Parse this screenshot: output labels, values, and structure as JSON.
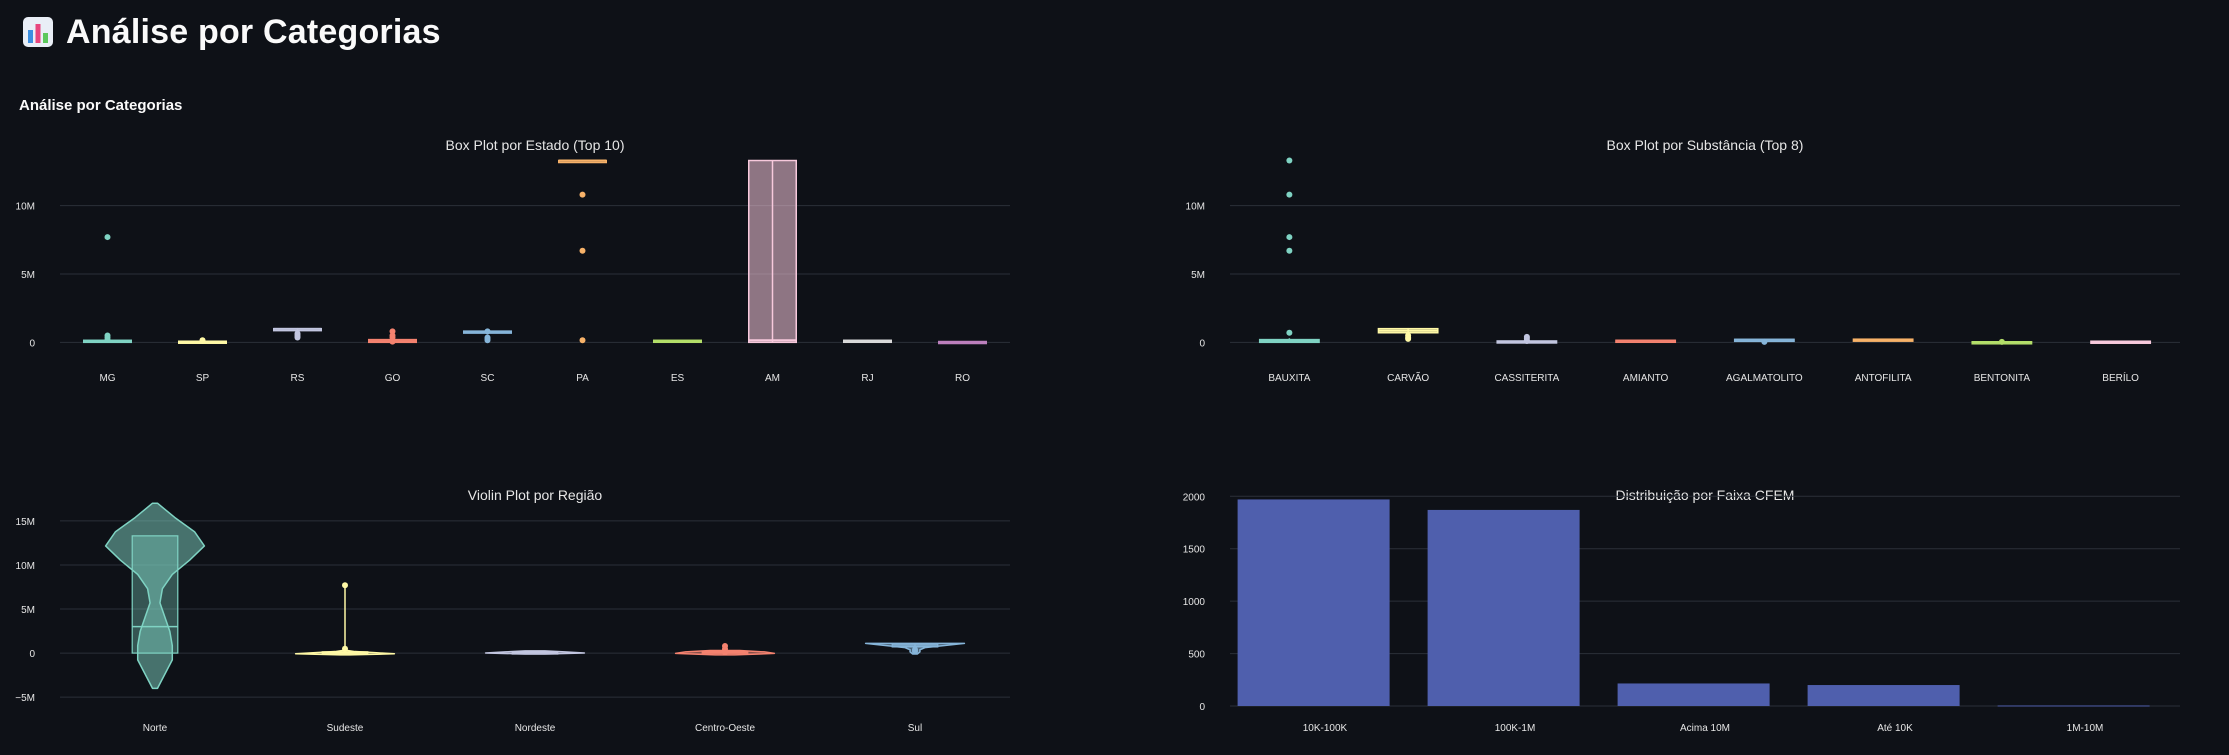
{
  "page": {
    "title": "Análise por Categorias",
    "section_heading": "Análise por Categorias",
    "header_icon": "bar-chart-icon"
  },
  "colors": {
    "background": "#0e1117",
    "grid": "#2b3039",
    "text": "#e6e6e6",
    "palette": [
      "#7fd3c3",
      "#fff9a6",
      "#c2c6e0",
      "#f4826f",
      "#86b5d9",
      "#f7b269",
      "#b3de69",
      "#f7c9dc",
      "#d9d9d9",
      "#bc80bd"
    ],
    "bar": "#4f5fad"
  },
  "chart_data": [
    {
      "id": "box-estado",
      "type": "box",
      "title": "Box Plot por Estado (Top 10)",
      "categories": [
        "MG",
        "SP",
        "RS",
        "GO",
        "SC",
        "PA",
        "ES",
        "AM",
        "RJ",
        "RO"
      ],
      "y_ticks": [
        0,
        5000000,
        10000000
      ],
      "y_tick_labels": [
        "0",
        "5M",
        "10M"
      ],
      "ylim": [
        -1000000,
        14800000
      ],
      "grid": true,
      "boxes": [
        {
          "q1": 0,
          "q3": 150000,
          "median": 60000,
          "whisker_low": 0,
          "whisker_high": 300000,
          "outliers": [
            7700000,
            500000,
            350000,
            200000
          ]
        },
        {
          "q1": 0,
          "q3": 80000,
          "median": 30000,
          "whisker_low": 0,
          "whisker_high": 150000,
          "outliers": [
            150000,
            100000
          ]
        },
        {
          "q1": 950000,
          "q3": 1000000,
          "median": 980000,
          "whisker_low": 900000,
          "whisker_high": 1050000,
          "outliers": [
            650000,
            550000,
            450000,
            350000
          ]
        },
        {
          "q1": 0,
          "q3": 200000,
          "median": 90000,
          "whisker_low": 0,
          "whisker_high": 300000,
          "outliers": [
            800000,
            500000,
            350000,
            150000,
            50000
          ]
        },
        {
          "q1": 750000,
          "q3": 820000,
          "median": 780000,
          "whisker_low": 700000,
          "whisker_high": 870000,
          "outliers": [
            800000,
            350000,
            250000,
            150000
          ]
        },
        {
          "q1": 13300000,
          "q3": 13300000,
          "median": 13300000,
          "whisker_low": 13300000,
          "whisker_high": 13300000,
          "outliers": [
            10800000,
            6700000,
            150000
          ]
        },
        {
          "q1": 30000,
          "q3": 150000,
          "median": 80000,
          "whisker_low": 0,
          "whisker_high": 150000,
          "outliers": []
        },
        {
          "q1": 0,
          "q3": 13300000,
          "median": 150000,
          "whisker_low": 0,
          "whisker_high": 13300000,
          "outliers": []
        },
        {
          "q1": 100000,
          "q3": 150000,
          "median": 120000,
          "whisker_low": 80000,
          "whisker_high": 180000,
          "outliers": []
        },
        {
          "q1": 0,
          "q3": 60000,
          "median": 20000,
          "whisker_low": 0,
          "whisker_high": 80000,
          "outliers": []
        }
      ]
    },
    {
      "id": "box-substancia",
      "type": "box",
      "title": "Box Plot por Substância (Top 8)",
      "categories": [
        "BAUXITA",
        "CARVÃO",
        "CASSITERITA",
        "AMIANTO",
        "AGALMATOLITO",
        "ANTOFILITA",
        "BENTONITA",
        "BERÍLO"
      ],
      "y_ticks": [
        0,
        5000000,
        10000000
      ],
      "y_tick_labels": [
        "0",
        "5M",
        "10M"
      ],
      "ylim": [
        -1000000,
        14800000
      ],
      "grid": true,
      "boxes": [
        {
          "q1": 0,
          "q3": 200000,
          "median": 100000,
          "whisker_low": 0,
          "whisker_high": 300000,
          "outliers": [
            13300000,
            10800000,
            7700000,
            6700000,
            700000
          ]
        },
        {
          "q1": 700000,
          "q3": 1000000,
          "median": 850000,
          "whisker_low": 500000,
          "whisker_high": 1050000,
          "outliers": [
            500000,
            350000,
            250000
          ]
        },
        {
          "q1": 0,
          "q3": 100000,
          "median": 50000,
          "whisker_low": 0,
          "whisker_high": 150000,
          "outliers": [
            400000,
            300000,
            150000,
            100000
          ]
        },
        {
          "q1": 100000,
          "q3": 150000,
          "median": 130000,
          "whisker_low": 80000,
          "whisker_high": 180000,
          "outliers": []
        },
        {
          "q1": 150000,
          "q3": 220000,
          "median": 190000,
          "whisker_low": 100000,
          "whisker_high": 260000,
          "outliers": [
            30000
          ]
        },
        {
          "q1": 180000,
          "q3": 230000,
          "median": 200000,
          "whisker_low": 150000,
          "whisker_high": 260000,
          "outliers": []
        },
        {
          "q1": 0,
          "q3": 40000,
          "median": 20000,
          "whisker_low": 0,
          "whisker_high": 60000,
          "outliers": [
            30000
          ]
        },
        {
          "q1": 20000,
          "q3": 80000,
          "median": 50000,
          "whisker_low": 0,
          "whisker_high": 100000,
          "outliers": []
        }
      ]
    },
    {
      "id": "violin-regiao",
      "type": "violin",
      "title": "Violin Plot por Região",
      "categories": [
        "Norte",
        "Sudeste",
        "Nordeste",
        "Centro-Oeste",
        "Sul"
      ],
      "y_ticks": [
        -5000000,
        0,
        5000000,
        10000000,
        15000000
      ],
      "y_tick_labels": [
        "−5M",
        "0",
        "5M",
        "10M",
        "15M"
      ],
      "ylim": [
        -6000000,
        18500000
      ],
      "grid": true,
      "violins": [
        {
          "y_min": -4000000,
          "y_max": 17000000,
          "density": [
            0.05,
            0.2,
            0.35,
            0.35,
            0.3,
            0.2,
            0.1,
            0.15,
            0.35,
            0.7,
            1.0,
            0.8,
            0.4,
            0.05
          ],
          "box_q1": 0,
          "box_q3": 13300000,
          "median": 3000000,
          "points": []
        },
        {
          "y_min": -200000,
          "y_max": 300000,
          "density": [
            0.1,
            1.0,
            0.6,
            0.2,
            0.05
          ],
          "box_q1": 0,
          "box_q3": 150000,
          "median": 50000,
          "points": [
            7700000,
            500000
          ]
        },
        {
          "y_min": -100000,
          "y_max": 250000,
          "density": [
            0.2,
            1.0,
            0.6,
            0.2
          ],
          "box_q1": 0,
          "box_q3": 120000,
          "median": 60000,
          "points": []
        },
        {
          "y_min": -200000,
          "y_max": 300000,
          "density": [
            0.2,
            1.0,
            0.8,
            0.3
          ],
          "box_q1": 0,
          "box_q3": 200000,
          "median": 90000,
          "points": [
            800000,
            500000,
            300000,
            100000
          ]
        },
        {
          "y_min": -100000,
          "y_max": 1100000,
          "density": [
            0.05,
            0.1,
            0.1,
            0.2,
            0.6,
            1.0
          ],
          "box_q1": 700000,
          "box_q3": 1000000,
          "median": 800000,
          "points": [
            400000,
            200000
          ]
        }
      ]
    },
    {
      "id": "bar-faixa",
      "type": "bar",
      "title": "Distribuição por Faixa CFEM",
      "categories": [
        "10K-100K",
        "100K-1M",
        "Acima 10M",
        "Até 10K",
        "1M-10M"
      ],
      "values": [
        1970,
        1870,
        215,
        200,
        5
      ],
      "y_ticks": [
        0,
        500,
        1000,
        1500,
        2000
      ],
      "y_tick_labels": [
        "0",
        "500",
        "1000",
        "1500",
        "2000"
      ],
      "ylim": [
        0,
        2060
      ],
      "grid": true
    }
  ]
}
